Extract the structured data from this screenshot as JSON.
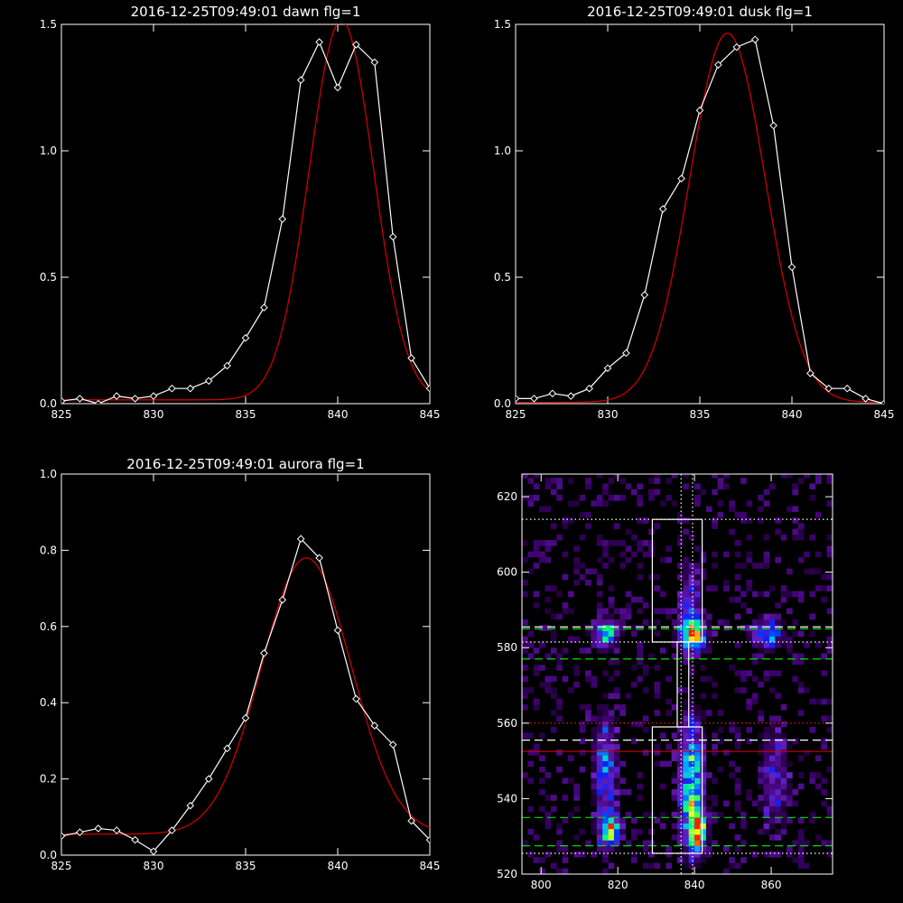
{
  "chart_data": [
    {
      "type": "line",
      "title": "2016-12-25T09:49:01 dawn flg=1",
      "xlim": [
        825,
        845
      ],
      "ylim": [
        0.0,
        1.5
      ],
      "xticks": [
        "825",
        "830",
        "835",
        "840",
        "845"
      ],
      "yticks": [
        "0.0",
        "0.5",
        "1.0",
        "1.5"
      ],
      "series": [
        {
          "color": "#ffffff",
          "marker": "diamond",
          "x": [
            825,
            826,
            827,
            828,
            829,
            830,
            831,
            832,
            833,
            834,
            835,
            836,
            837,
            838,
            839,
            840,
            841,
            842,
            843,
            844,
            845
          ],
          "y": [
            0.01,
            0.02,
            0.0,
            0.03,
            0.02,
            0.03,
            0.06,
            0.06,
            0.09,
            0.15,
            0.26,
            0.38,
            0.73,
            1.28,
            1.43,
            1.25,
            1.42,
            1.35,
            0.66,
            0.18,
            0.06
          ]
        },
        {
          "color": "#cc0000",
          "fit": "gaussian",
          "amplitude": 1.5,
          "center": 840.2,
          "sigma": 1.75,
          "baseline": 0.015
        }
      ]
    },
    {
      "type": "line",
      "title": "2016-12-25T09:49:01 dusk flg=1",
      "xlim": [
        825,
        845
      ],
      "ylim": [
        0.0,
        1.5
      ],
      "xticks": [
        "825",
        "830",
        "835",
        "840",
        "845"
      ],
      "yticks": [
        "0.0",
        "0.5",
        "1.0",
        "1.5"
      ],
      "series": [
        {
          "color": "#ffffff",
          "marker": "diamond",
          "x": [
            825,
            826,
            827,
            828,
            829,
            830,
            831,
            832,
            833,
            834,
            835,
            836,
            837,
            838,
            839,
            840,
            841,
            842,
            843,
            844,
            845
          ],
          "y": [
            0.02,
            0.02,
            0.04,
            0.03,
            0.06,
            0.14,
            0.2,
            0.43,
            0.77,
            0.89,
            1.16,
            1.34,
            1.41,
            1.44,
            1.1,
            0.54,
            0.12,
            0.06,
            0.06,
            0.02,
            0.0
          ]
        },
        {
          "color": "#cc0000",
          "fit": "gaussian",
          "amplitude": 1.46,
          "center": 836.5,
          "sigma": 2.05,
          "baseline": 0.005
        }
      ]
    },
    {
      "type": "line",
      "title": "2016-12-25T09:49:01 aurora flg=1",
      "xlim": [
        825,
        845
      ],
      "ylim": [
        0.0,
        1.0
      ],
      "xticks": [
        "825",
        "830",
        "835",
        "840",
        "845"
      ],
      "yticks": [
        "0.0",
        "0.2",
        "0.4",
        "0.6",
        "0.8",
        "1.0"
      ],
      "series": [
        {
          "color": "#ffffff",
          "marker": "diamond",
          "x": [
            825,
            826,
            827,
            828,
            829,
            830,
            831,
            832,
            833,
            834,
            835,
            836,
            837,
            838,
            839,
            840,
            841,
            842,
            843,
            844,
            845
          ],
          "y": [
            0.05,
            0.06,
            0.07,
            0.065,
            0.04,
            0.01,
            0.065,
            0.13,
            0.2,
            0.28,
            0.36,
            0.53,
            0.67,
            0.83,
            0.78,
            0.59,
            0.41,
            0.34,
            0.29,
            0.09,
            0.04
          ]
        },
        {
          "color": "#cc0000",
          "fit": "gaussian",
          "amplitude": 0.725,
          "center": 838.3,
          "sigma": 2.45,
          "baseline": 0.055
        }
      ]
    },
    {
      "type": "heatmap",
      "xlim": [
        795,
        876
      ],
      "ylim": [
        520,
        626
      ],
      "xticks": [
        "800",
        "820",
        "840",
        "860"
      ],
      "yticks": [
        "520",
        "540",
        "560",
        "580",
        "600",
        "620"
      ],
      "colormap": [
        "#000000",
        "#3a0068",
        "#6a1fc0",
        "#0022ff",
        "#00b4ff",
        "#00ff80",
        "#ffff00",
        "#ff2000"
      ],
      "sources": [
        {
          "x": 839,
          "y": 583,
          "peak": 1.0,
          "sx": 2.2,
          "sy": 2.5
        },
        {
          "x": 816,
          "y": 583,
          "peak": 0.7,
          "sx": 2.0,
          "sy": 2.5
        },
        {
          "x": 858,
          "y": 583,
          "peak": 0.55,
          "sx": 2.5,
          "sy": 2.5
        },
        {
          "x": 838,
          "y": 591,
          "peak": 0.4,
          "sx": 1.6,
          "sy": 6.0
        },
        {
          "x": 838.5,
          "y": 543,
          "peak": 0.8,
          "sx": 2.0,
          "sy": 11.0
        },
        {
          "x": 840,
          "y": 531,
          "peak": 1.1,
          "sx": 1.5,
          "sy": 3.0
        },
        {
          "x": 817,
          "y": 531,
          "peak": 0.75,
          "sx": 1.8,
          "sy": 3.0
        },
        {
          "x": 816,
          "y": 548,
          "peak": 0.45,
          "sx": 2.0,
          "sy": 9.0
        },
        {
          "x": 860,
          "y": 545,
          "peak": 0.3,
          "sx": 2.5,
          "sy": 9.0
        }
      ],
      "boxes": [
        {
          "x0": 829,
          "x1": 842,
          "y0": 581.5,
          "y1": 614
        },
        {
          "x0": 829,
          "x1": 842,
          "y0": 525.5,
          "y1": 559
        },
        {
          "x0": 835.5,
          "x1": 838.5,
          "y0": 559,
          "y1": 581.5
        }
      ],
      "vlines": [
        {
          "x": 836.5,
          "style": "dotted",
          "color": "#ffffff"
        },
        {
          "x": 839.5,
          "style": "dotted",
          "color": "#ffffff"
        }
      ],
      "hlines": [
        {
          "y": 614,
          "style": "dotted",
          "color": "#ffffff"
        },
        {
          "y": 581.5,
          "style": "dotted",
          "color": "#ffffff"
        },
        {
          "y": 585.5,
          "style": "dashed",
          "color": "#ffffff"
        },
        {
          "y": 585,
          "style": "dashed",
          "color": "#00dd00"
        },
        {
          "y": 577,
          "style": "dashed",
          "color": "#00dd00"
        },
        {
          "y": 560,
          "style": "dotted",
          "color": "#ff2020"
        },
        {
          "y": 555.5,
          "style": "dashed",
          "color": "#ffffff"
        },
        {
          "y": 552.5,
          "style": "solid",
          "color": "#cc0000"
        },
        {
          "y": 535,
          "style": "dashed",
          "color": "#00dd00"
        },
        {
          "y": 527.5,
          "style": "dashed",
          "color": "#00dd00"
        },
        {
          "y": 525.5,
          "style": "dotted",
          "color": "#ffffff"
        }
      ]
    }
  ]
}
